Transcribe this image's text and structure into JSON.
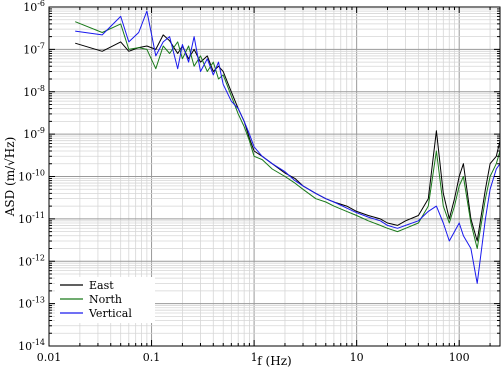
{
  "chart_data": {
    "type": "line",
    "title": "",
    "xlabel": "f (Hz)",
    "ylabel": "ASD (m/√Hz)",
    "xscale": "log",
    "yscale": "log",
    "xlim": [
      0.01,
      250
    ],
    "ylim": [
      1e-14,
      1e-06
    ],
    "grid": true,
    "legend_position": "bottom-left",
    "x_ticks": [
      {
        "value": 0.01,
        "label": "0.01"
      },
      {
        "value": 0.1,
        "label": "0.1"
      },
      {
        "value": 1,
        "label": "1"
      },
      {
        "value": 10,
        "label": "10"
      },
      {
        "value": 100,
        "label": "100"
      }
    ],
    "y_ticks": [
      {
        "value": 1e-14,
        "base": "10",
        "exp": "-14"
      },
      {
        "value": 1e-13,
        "base": "10",
        "exp": "-13"
      },
      {
        "value": 1e-12,
        "base": "10",
        "exp": "-12"
      },
      {
        "value": 1e-11,
        "base": "10",
        "exp": "-11"
      },
      {
        "value": 1e-10,
        "base": "10",
        "exp": "-10"
      },
      {
        "value": 1e-09,
        "base": "10",
        "exp": "-9"
      },
      {
        "value": 1e-08,
        "base": "10",
        "exp": "-8"
      },
      {
        "value": 1e-07,
        "base": "10",
        "exp": "-7"
      },
      {
        "value": 1e-06,
        "base": "10",
        "exp": "-6"
      }
    ],
    "series": [
      {
        "name": "East",
        "color": "#000000",
        "x": [
          0.018,
          0.033,
          0.05,
          0.06,
          0.075,
          0.09,
          0.11,
          0.13,
          0.15,
          0.18,
          0.2,
          0.23,
          0.26,
          0.3,
          0.35,
          0.4,
          0.45,
          0.5,
          0.6,
          0.7,
          0.8,
          0.9,
          1.0,
          1.2,
          1.5,
          2,
          2.5,
          3,
          4,
          5,
          6,
          8,
          10,
          13,
          17,
          20,
          25,
          30,
          40,
          50,
          60,
          70,
          80,
          90,
          100,
          110,
          130,
          150,
          180,
          200,
          230,
          250
        ],
        "y": [
          1.4e-07,
          9e-08,
          1.5e-07,
          9e-08,
          1.1e-07,
          1.2e-07,
          1e-07,
          2.2e-07,
          1.6e-07,
          8e-08,
          1.2e-07,
          6e-08,
          1e-07,
          5e-08,
          7e-08,
          3e-08,
          4e-08,
          3e-08,
          1e-08,
          4e-09,
          2e-09,
          8e-10,
          4e-10,
          3e-10,
          2e-10,
          1.2e-10,
          9e-11,
          6e-11,
          4e-11,
          3e-11,
          2.5e-11,
          2e-11,
          1.5e-11,
          1.2e-11,
          1e-11,
          8e-12,
          7e-12,
          9e-12,
          1.2e-11,
          3e-11,
          1.2e-09,
          4e-11,
          1e-11,
          3e-11,
          1e-10,
          2e-10,
          1e-11,
          3e-12,
          5e-11,
          2e-10,
          3e-10,
          7e-10
        ]
      },
      {
        "name": "North",
        "color": "#1a7a1a",
        "x": [
          0.018,
          0.033,
          0.05,
          0.06,
          0.075,
          0.09,
          0.11,
          0.13,
          0.15,
          0.18,
          0.2,
          0.23,
          0.26,
          0.3,
          0.35,
          0.4,
          0.45,
          0.5,
          0.6,
          0.7,
          0.8,
          0.9,
          1.0,
          1.2,
          1.5,
          2,
          2.5,
          3,
          4,
          5,
          6,
          8,
          10,
          13,
          17,
          20,
          25,
          30,
          40,
          50,
          60,
          70,
          80,
          90,
          100,
          110,
          130,
          150,
          180,
          200,
          230,
          250
        ],
        "y": [
          4.5e-07,
          2.5e-07,
          4e-07,
          1e-07,
          1.1e-07,
          1e-07,
          3.5e-08,
          1.2e-07,
          8e-08,
          1.5e-07,
          6e-08,
          1.2e-07,
          4e-08,
          7e-08,
          3e-08,
          5e-08,
          2e-08,
          2.5e-08,
          8e-09,
          3e-09,
          1.5e-09,
          7e-10,
          3e-10,
          2.5e-10,
          1.5e-10,
          1e-10,
          7e-11,
          5e-11,
          3e-11,
          2.5e-11,
          2e-11,
          1.5e-11,
          1.2e-11,
          9e-12,
          7e-12,
          6e-12,
          5e-12,
          6e-12,
          8e-12,
          2e-11,
          4e-10,
          2e-11,
          8e-12,
          2e-11,
          6e-11,
          1e-10,
          8e-12,
          2e-12,
          3e-11,
          1e-10,
          2e-10,
          4e-10
        ]
      },
      {
        "name": "Vertical",
        "color": "#1a1aee",
        "x": [
          0.018,
          0.033,
          0.05,
          0.06,
          0.075,
          0.09,
          0.11,
          0.13,
          0.15,
          0.18,
          0.2,
          0.23,
          0.26,
          0.3,
          0.35,
          0.4,
          0.45,
          0.5,
          0.6,
          0.7,
          0.8,
          0.9,
          1.0,
          1.2,
          1.5,
          2,
          2.5,
          3,
          4,
          5,
          6,
          8,
          10,
          13,
          17,
          20,
          25,
          30,
          40,
          50,
          60,
          70,
          80,
          90,
          100,
          110,
          130,
          150,
          180,
          200,
          230,
          250
        ],
        "y": [
          2.7e-07,
          2.2e-07,
          6e-07,
          1.5e-07,
          2.5e-07,
          8e-07,
          7e-08,
          1.5e-07,
          2e-07,
          3.5e-08,
          1.3e-07,
          5e-08,
          2e-07,
          3e-08,
          6e-08,
          2.5e-08,
          5e-08,
          1.5e-08,
          6e-09,
          4e-09,
          2e-09,
          1e-09,
          5e-10,
          3e-10,
          2e-10,
          1.3e-10,
          8e-11,
          6e-11,
          4e-11,
          3e-11,
          2.5e-11,
          1.8e-11,
          1.4e-11,
          1.1e-11,
          9e-12,
          7e-12,
          6e-12,
          7e-12,
          9e-12,
          1.5e-11,
          2e-11,
          8e-12,
          3e-12,
          5e-12,
          8e-12,
          4e-12,
          2e-12,
          3e-13,
          1e-11,
          5e-11,
          1.5e-10,
          2e-10
        ]
      }
    ]
  }
}
